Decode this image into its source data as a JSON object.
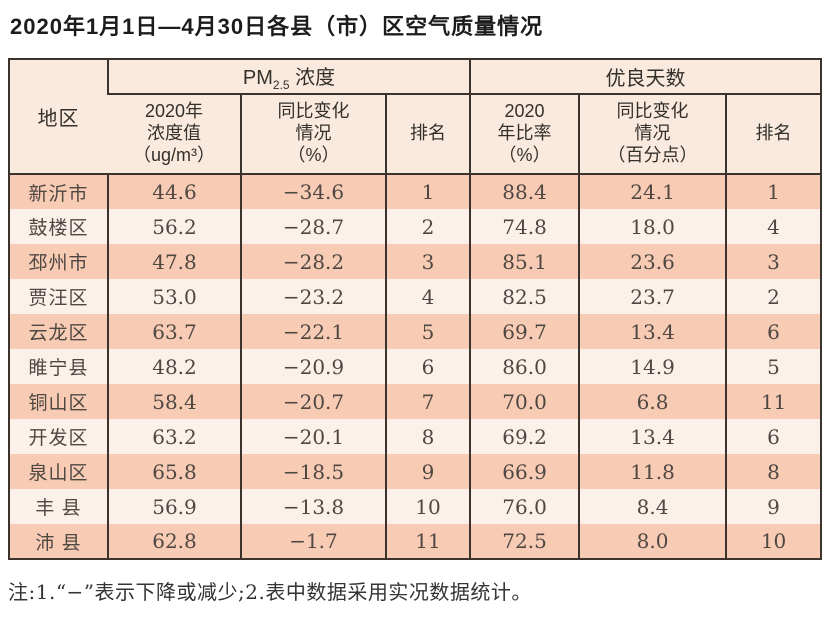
{
  "title": "2020年1月1日—4月30日各县（市）区空气质量情况",
  "colors": {
    "row_salmon": "#f8cbb4",
    "row_light": "#fcf1ea",
    "header_bg": "#faeadd",
    "border": "#3b342e"
  },
  "table": {
    "corner_header": "地区",
    "pm_group": {
      "prefix": "PM",
      "sub": "2.5",
      "suffix": " 浓度"
    },
    "good_days_group": "优良天数",
    "subheaders": [
      "2020年\n浓度值\n（ug/m³）",
      "同比变化\n情况\n（%）",
      "排名",
      "2020\n年比率\n（%）",
      "同比变化\n情况\n（百分点）",
      "排名"
    ],
    "rows": [
      {
        "region": "新沂市",
        "cells": [
          "44.6",
          "−34.6",
          "1",
          "88.4",
          "24.1",
          "1"
        ]
      },
      {
        "region": "鼓楼区",
        "cells": [
          "56.2",
          "−28.7",
          "2",
          "74.8",
          "18.0",
          "4"
        ]
      },
      {
        "region": "邳州市",
        "cells": [
          "47.8",
          "−28.2",
          "3",
          "85.1",
          "23.6",
          "3"
        ]
      },
      {
        "region": "贾汪区",
        "cells": [
          "53.0",
          "−23.2",
          "4",
          "82.5",
          "23.7",
          "2"
        ]
      },
      {
        "region": "云龙区",
        "cells": [
          "63.7",
          "−22.1",
          "5",
          "69.7",
          "13.4",
          "6"
        ]
      },
      {
        "region": "睢宁县",
        "cells": [
          "48.2",
          "−20.9",
          "6",
          "86.0",
          "14.9",
          "5"
        ]
      },
      {
        "region": "铜山区",
        "cells": [
          "58.4",
          "−20.7",
          "7",
          "70.0",
          "6.8",
          "11"
        ]
      },
      {
        "region": "开发区",
        "cells": [
          "63.2",
          "−20.1",
          "8",
          "69.2",
          "13.4",
          "6"
        ]
      },
      {
        "region": "泉山区",
        "cells": [
          "65.8",
          "−18.5",
          "9",
          "66.9",
          "11.8",
          "8"
        ]
      },
      {
        "region": "丰 县",
        "cells": [
          "56.9",
          "−13.8",
          "10",
          "76.0",
          "8.4",
          "9"
        ]
      },
      {
        "region": "沛 县",
        "cells": [
          "62.8",
          "−1.7",
          "11",
          "72.5",
          "8.0",
          "10"
        ]
      }
    ]
  },
  "footnote": "注:1.“−”表示下降或减少;2.表中数据采用实况数据统计。"
}
